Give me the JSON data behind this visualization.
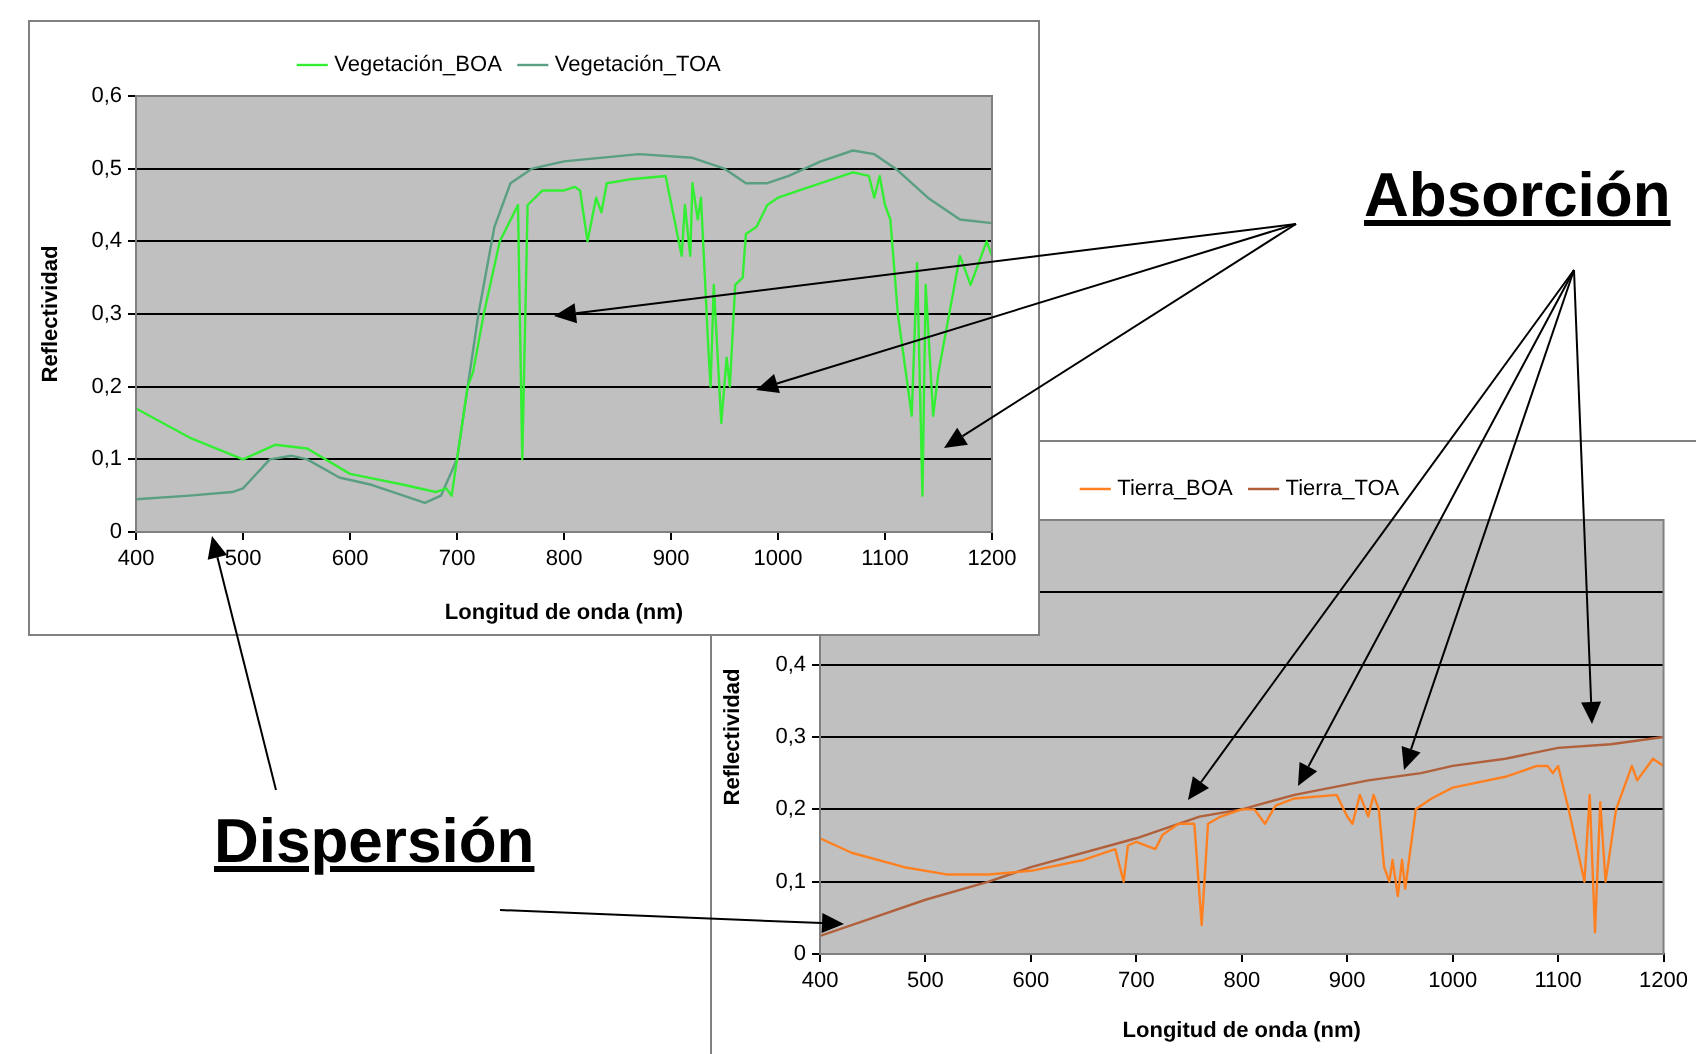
{
  "chart_data": [
    {
      "type": "line",
      "xlabel": "Longitud de onda (nm)",
      "ylabel": "Reflectividad",
      "legend": "top",
      "grid": "y",
      "marker": "none",
      "line_style": "solid",
      "xlim": [
        400,
        1200
      ],
      "xticks": [
        400,
        500,
        600,
        700,
        800,
        900,
        1000,
        1100,
        1200
      ],
      "ylim": [
        0,
        0.6
      ],
      "yticks": [
        0,
        {
          "value": 0.1,
          "label": "0,1"
        },
        {
          "value": 0.2,
          "label": "0,2"
        },
        {
          "value": 0.3,
          "label": "0,3"
        },
        {
          "value": 0.4,
          "label": "0,4"
        },
        {
          "value": 0.5,
          "label": "0,5"
        },
        {
          "value": 0.6,
          "label": "0,6"
        }
      ],
      "annotations": [
        "Absorción",
        "Dispersión"
      ],
      "series": [
        {
          "name": "Vegetación_BOA",
          "color": "#33ee33",
          "x": [
            400,
            450,
            500,
            530,
            560,
            600,
            650,
            680,
            690,
            695,
            700,
            710,
            715,
            725,
            740,
            757,
            761,
            766,
            780,
            800,
            810,
            815,
            822,
            830,
            835,
            840,
            860,
            895,
            910,
            913,
            918,
            920,
            925,
            928,
            935,
            937,
            940,
            947,
            952,
            955,
            960,
            967,
            970,
            980,
            990,
            1000,
            1040,
            1070,
            1085,
            1090,
            1095,
            1100,
            1105,
            1112,
            1125,
            1130,
            1135,
            1138,
            1145,
            1150,
            1160,
            1170,
            1180,
            1195,
            1200
          ],
          "values": [
            0.17,
            0.13,
            0.1,
            0.12,
            0.115,
            0.08,
            0.065,
            0.055,
            0.06,
            0.05,
            0.1,
            0.2,
            0.22,
            0.3,
            0.4,
            0.45,
            0.1,
            0.45,
            0.47,
            0.47,
            0.475,
            0.47,
            0.4,
            0.46,
            0.44,
            0.48,
            0.485,
            0.49,
            0.38,
            0.45,
            0.38,
            0.48,
            0.43,
            0.46,
            0.25,
            0.2,
            0.34,
            0.15,
            0.24,
            0.2,
            0.34,
            0.35,
            0.41,
            0.42,
            0.45,
            0.46,
            0.48,
            0.495,
            0.49,
            0.46,
            0.49,
            0.45,
            0.43,
            0.3,
            0.16,
            0.37,
            0.05,
            0.34,
            0.16,
            0.22,
            0.3,
            0.38,
            0.34,
            0.4,
            0.38
          ]
        },
        {
          "name": "Vegetación_TOA",
          "color": "#5a9f82",
          "x": [
            400,
            450,
            490,
            500,
            525,
            545,
            560,
            590,
            620,
            650,
            670,
            685,
            700,
            720,
            735,
            750,
            770,
            800,
            870,
            920,
            950,
            970,
            990,
            1010,
            1040,
            1070,
            1090,
            1110,
            1140,
            1170,
            1200
          ],
          "values": [
            0.045,
            0.05,
            0.055,
            0.06,
            0.1,
            0.105,
            0.1,
            0.075,
            0.065,
            0.05,
            0.04,
            0.05,
            0.1,
            0.3,
            0.42,
            0.48,
            0.5,
            0.51,
            0.52,
            0.515,
            0.5,
            0.48,
            0.48,
            0.49,
            0.51,
            0.525,
            0.52,
            0.5,
            0.46,
            0.43,
            0.425
          ]
        }
      ]
    },
    {
      "type": "line",
      "xlabel": "Longitud de onda (nm)",
      "ylabel": "Reflectividad",
      "legend": "top",
      "grid": "y",
      "marker": "none",
      "line_style": "solid",
      "xlim": [
        400,
        1200
      ],
      "xticks": [
        400,
        500,
        600,
        700,
        800,
        900,
        1000,
        1100,
        1200
      ],
      "ylim": [
        0,
        0.6
      ],
      "yticks": [
        0,
        {
          "value": 0.1,
          "label": "0,1"
        },
        {
          "value": 0.2,
          "label": "0,2"
        },
        {
          "value": 0.3,
          "label": "0,3"
        },
        {
          "value": 0.4,
          "label": "0,4"
        },
        {
          "value": 0.5,
          "label": null
        }
      ],
      "series": [
        {
          "name": "Tierra_BOA",
          "color": "#ff8020",
          "x": [
            400,
            430,
            480,
            520,
            560,
            600,
            650,
            680,
            688,
            692,
            700,
            718,
            725,
            740,
            755,
            762,
            768,
            780,
            800,
            812,
            822,
            832,
            850,
            890,
            900,
            905,
            912,
            920,
            925,
            930,
            935,
            940,
            943,
            948,
            952,
            955,
            965,
            980,
            1000,
            1050,
            1080,
            1090,
            1095,
            1100,
            1110,
            1125,
            1130,
            1135,
            1140,
            1145,
            1155,
            1170,
            1175,
            1190,
            1200
          ],
          "values": [
            0.16,
            0.14,
            0.12,
            0.11,
            0.11,
            0.115,
            0.13,
            0.145,
            0.1,
            0.15,
            0.155,
            0.145,
            0.165,
            0.18,
            0.18,
            0.04,
            0.18,
            0.19,
            0.2,
            0.2,
            0.18,
            0.205,
            0.215,
            0.22,
            0.19,
            0.18,
            0.22,
            0.19,
            0.22,
            0.2,
            0.12,
            0.1,
            0.13,
            0.08,
            0.13,
            0.09,
            0.2,
            0.215,
            0.23,
            0.245,
            0.26,
            0.26,
            0.25,
            0.26,
            0.2,
            0.1,
            0.22,
            0.03,
            0.21,
            0.1,
            0.2,
            0.26,
            0.24,
            0.27,
            0.26
          ]
        },
        {
          "name": "Tierra_TOA",
          "color": "#b0603a",
          "x": [
            400,
            450,
            500,
            560,
            600,
            700,
            760,
            800,
            850,
            920,
            970,
            1000,
            1050,
            1100,
            1150,
            1200
          ],
          "values": [
            0.025,
            0.05,
            0.075,
            0.1,
            0.12,
            0.16,
            0.19,
            0.2,
            0.22,
            0.24,
            0.25,
            0.26,
            0.27,
            0.285,
            0.29,
            0.3
          ]
        }
      ]
    }
  ]
}
